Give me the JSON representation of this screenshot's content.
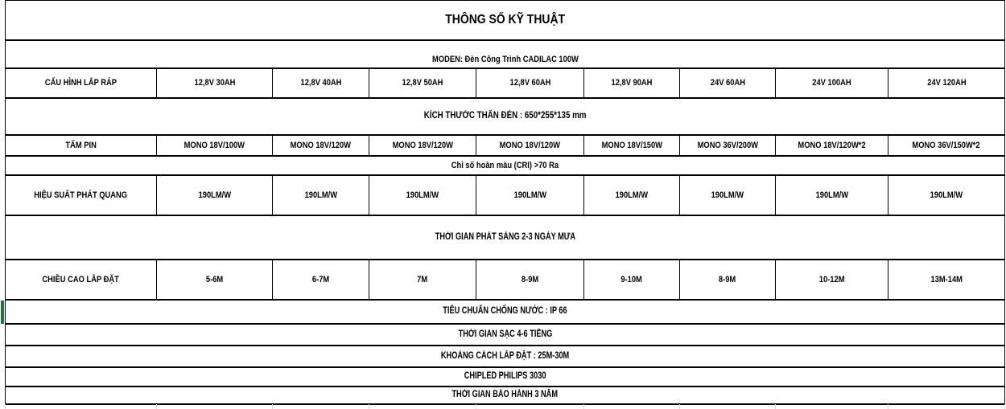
{
  "colors": {
    "accent_green": "#217346",
    "table_border": "#000000",
    "gridline": "#d9d9d9"
  },
  "sheet": {
    "title": "THÔNG SỐ KỸ THUẬT",
    "model": "MODEN: Đèn Công Trình CADILAC 100W",
    "assembly": {
      "label": "CẤU HÌNH LẮP RÁP",
      "values": [
        "12,8V 30AH",
        "12,8V 40AH",
        "12,8V 50AH",
        "12,8V 60AH",
        "12,8V 90AH",
        "24V 60AH",
        "24V 100AH",
        "24V 120AH"
      ]
    },
    "body_size": "KÍCH THƯỚC THÂN ĐÈN :  650*255*135 mm",
    "solar_panel": {
      "label": "TẤM PIN",
      "values": [
        "MONO 18V/100W",
        "MONO 18V/120W",
        "MONO 18V/120W",
        "MONO 18V/120W",
        "MONO 18V/150W",
        "MONO 36V/200W",
        "MONO 18V/120W*2",
        "MONO 36V/150W*2"
      ]
    },
    "cri": "Chỉ số hoàn màu (CRI) >70 Ra",
    "luminous_efficacy": {
      "label": "HIỆU SUẤT PHÁT QUANG",
      "values": [
        "190LM/W",
        "190LM/W",
        "190LM/W",
        "190LM/W",
        "190LM/W",
        "190LM/W",
        "190LM/W",
        "190LM/W"
      ]
    },
    "lighting_duration": "THỜI GIAN PHÁT SÁNG 2-3 NGÀY MƯA",
    "mount_height": {
      "label": "CHIỀU CAO LẮP ĐẶT",
      "values": [
        "5-6M",
        "6-7M",
        "7M",
        "8-9M",
        "9-10M",
        "8-9M",
        "10-12M",
        "13M-14M"
      ]
    },
    "waterproof": "TIÊU CHUẨN CHỐNG NƯỚC : IP 66",
    "charge_time": "THỜI GIAN SẠC 4-6 TIẾNG",
    "install_distance": "KHOẢNG CÁCH LẮP ĐẶT : 25M-30M",
    "chip": "CHIPLED PHILIPS 3030",
    "warranty": "THỜI GIAN BẢO HÀNH 3 NĂM"
  }
}
